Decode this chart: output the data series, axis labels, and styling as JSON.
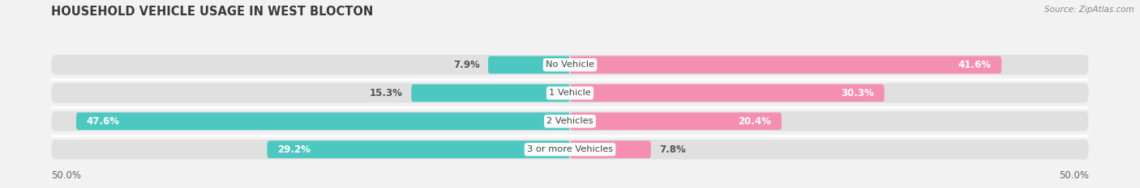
{
  "title": "HOUSEHOLD VEHICLE USAGE IN WEST BLOCTON",
  "source": "Source: ZipAtlas.com",
  "categories": [
    "No Vehicle",
    "1 Vehicle",
    "2 Vehicles",
    "3 or more Vehicles"
  ],
  "owner_values": [
    7.9,
    15.3,
    47.6,
    29.2
  ],
  "renter_values": [
    41.6,
    30.3,
    20.4,
    7.8
  ],
  "owner_color": "#4DC8C0",
  "renter_color": "#F48FB1",
  "axis_max": 50.0,
  "background_color": "#f2f2f2",
  "bar_background": "#e0e0e0",
  "title_fontsize": 10.5,
  "label_fontsize": 8.5,
  "bar_height": 0.62,
  "bar_gap": 0.38,
  "rounding": 0.18
}
